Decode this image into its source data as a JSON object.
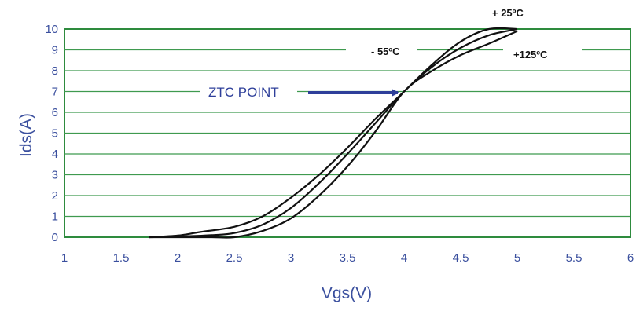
{
  "chart_data": {
    "type": "line",
    "xlabel": "Vgs(V)",
    "ylabel": "Ids(A)",
    "xlim": [
      1,
      6
    ],
    "ylim": [
      0,
      10
    ],
    "x_ticks": [
      "1",
      "1.5",
      "2",
      "2.5",
      "3",
      "3.5",
      "4",
      "4.5",
      "5",
      "5.5",
      "6"
    ],
    "y_ticks": [
      "0",
      "1",
      "2",
      "3",
      "4",
      "5",
      "6",
      "7",
      "8",
      "9",
      "10"
    ],
    "grid": "horizontal",
    "colors": {
      "plot_border": "#2e8b3e",
      "grid": "#3f9a4f",
      "curves": "#111111",
      "axis_text": "#3a4f9e",
      "arrow": "#2e3f9a"
    },
    "series": [
      {
        "name": "- 55ºC",
        "x": [
          1.75,
          2.0,
          2.2,
          2.5,
          2.75,
          3.0,
          3.25,
          3.5,
          3.75,
          4.0,
          4.25,
          4.5,
          4.75,
          5.0
        ],
        "y": [
          0.0,
          0.08,
          0.25,
          0.5,
          1.0,
          1.9,
          3.0,
          4.3,
          5.7,
          7.0,
          8.3,
          9.4,
          10.0,
          10.0
        ]
      },
      {
        "name": "+ 25ºC",
        "x": [
          1.75,
          2.0,
          2.3,
          2.5,
          2.75,
          3.0,
          3.25,
          3.5,
          3.75,
          4.0,
          4.25,
          4.5,
          4.75,
          5.0
        ],
        "y": [
          0.0,
          0.03,
          0.1,
          0.2,
          0.6,
          1.4,
          2.6,
          4.0,
          5.5,
          7.0,
          8.2,
          9.1,
          9.7,
          10.0
        ]
      },
      {
        "name": "+125ºC",
        "x": [
          1.75,
          2.0,
          2.3,
          2.5,
          2.75,
          3.0,
          3.25,
          3.5,
          3.75,
          4.0,
          4.25,
          4.5,
          4.75,
          5.0
        ],
        "y": [
          0.0,
          0.0,
          0.0,
          0.0,
          0.3,
          0.9,
          2.0,
          3.4,
          5.1,
          7.0,
          8.0,
          8.75,
          9.3,
          9.9
        ]
      }
    ],
    "annotations": [
      {
        "text": "ZTC POINT",
        "points_to": [
          4.0,
          7.0
        ]
      },
      {
        "text": "+ 25ºC"
      },
      {
        "text": "- 55ºC"
      },
      {
        "text": "+125ºC"
      }
    ]
  }
}
